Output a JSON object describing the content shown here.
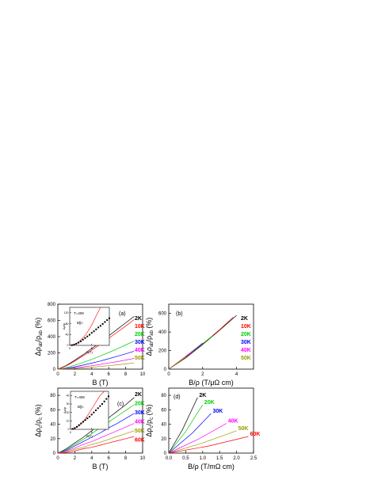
{
  "chart_data": [
    {
      "panel": "a",
      "type": "line",
      "panel_label": "(a)",
      "xlabel": "B (T)",
      "ylabel_parts": [
        "Δρ",
        "ab",
        "/ρ",
        "ab",
        " (%)"
      ],
      "xlim": [
        0,
        10
      ],
      "ylim": [
        0,
        800
      ],
      "xticks": [
        0,
        2,
        4,
        6,
        8,
        10
      ],
      "yticks": [
        0,
        200,
        400,
        600,
        800
      ],
      "x": [
        0,
        1,
        2,
        3,
        4,
        5,
        6,
        7,
        8,
        9
      ],
      "series": [
        {
          "name": "2K",
          "color": "#000000",
          "values": [
            0,
            45,
            110,
            180,
            255,
            330,
            410,
            490,
            570,
            650
          ]
        },
        {
          "name": "10K",
          "color": "#ff0000",
          "values": [
            0,
            40,
            100,
            165,
            235,
            305,
            380,
            455,
            530,
            610
          ]
        },
        {
          "name": "20K",
          "color": "#00cc00",
          "values": [
            0,
            18,
            48,
            82,
            120,
            162,
            205,
            250,
            298,
            345
          ]
        },
        {
          "name": "30K",
          "color": "#0000ff",
          "values": [
            0,
            10,
            28,
            50,
            74,
            100,
            128,
            158,
            188,
            220
          ]
        },
        {
          "name": "40K",
          "color": "#ff00ff",
          "values": [
            0,
            5,
            15,
            28,
            42,
            58,
            75,
            93,
            112,
            132
          ]
        },
        {
          "name": "50K",
          "color": "#999900",
          "values": [
            0,
            3,
            8,
            15,
            23,
            32,
            42,
            53,
            64,
            76
          ]
        }
      ],
      "inset": {
        "annotation": "T=40K",
        "field_label": "B||c",
        "xlabel": "B(T)",
        "ylabel": "Δρ/ρ",
        "xlim": [
          0,
          9
        ],
        "ylim": [
          0,
          140
        ],
        "xticks": [
          0,
          5
        ],
        "yticks": [
          0,
          40,
          80,
          120
        ],
        "points_x": [
          0.5,
          1,
          1.5,
          2,
          2.5,
          3,
          3.5,
          4,
          4.5,
          5,
          5.5,
          6,
          6.5,
          7,
          7.5,
          8,
          8.5,
          9
        ],
        "points_y": [
          1,
          3,
          6,
          10,
          15,
          21,
          27,
          33,
          39,
          46,
          52,
          59,
          66,
          72,
          79,
          86,
          93,
          100
        ],
        "fit_x": [
          0,
          1,
          2,
          3,
          4,
          5,
          6,
          7
        ],
        "fit_y": [
          0,
          3,
          12,
          27,
          48,
          75,
          108,
          140
        ]
      }
    },
    {
      "panel": "b",
      "type": "line",
      "panel_label": "(b)",
      "xlabel": "B/ρ (T/μΩ cm)",
      "ylabel_parts": [
        "Δρ",
        "ab",
        "/ρ",
        "ab",
        " (%)"
      ],
      "xlim": [
        0,
        5
      ],
      "ylim": [
        0,
        700
      ],
      "xticks": [
        0,
        2,
        4
      ],
      "yticks": [
        0,
        200,
        400,
        600
      ],
      "series": [
        {
          "name": "2K",
          "color": "#000000",
          "x": [
            0,
            1,
            2,
            3,
            4
          ],
          "values": [
            0,
            120,
            265,
            420,
            580
          ]
        },
        {
          "name": "10K",
          "color": "#ff0000",
          "x": [
            0,
            1,
            2,
            3,
            3.8
          ],
          "values": [
            0,
            125,
            270,
            425,
            560
          ]
        },
        {
          "name": "20K",
          "color": "#00cc00",
          "x": [
            0,
            1,
            2,
            2.6
          ],
          "values": [
            0,
            130,
            275,
            360
          ]
        },
        {
          "name": "30K",
          "color": "#0000ff",
          "x": [
            0,
            1,
            2
          ],
          "values": [
            0,
            135,
            280
          ]
        },
        {
          "name": "40K",
          "color": "#ff00ff",
          "x": [
            0,
            0.8,
            1.4
          ],
          "values": [
            0,
            110,
            195
          ]
        },
        {
          "name": "50K",
          "color": "#999900",
          "x": [
            0,
            0.6,
            1.0
          ],
          "values": [
            0,
            80,
            135
          ]
        }
      ]
    },
    {
      "panel": "c",
      "type": "line",
      "panel_label": "(c)",
      "xlabel": "B (T)",
      "ylabel_parts": [
        "Δρ",
        "c",
        "/ρ",
        "c",
        " (%)"
      ],
      "xlim": [
        0,
        10
      ],
      "ylim": [
        0,
        90
      ],
      "xticks": [
        0,
        2,
        4,
        6,
        8,
        10
      ],
      "yticks": [
        0,
        20,
        40,
        60,
        80
      ],
      "x": [
        0,
        1,
        2,
        3,
        4,
        5,
        6,
        7,
        8,
        9
      ],
      "series": [
        {
          "name": "2K",
          "color": "#000000",
          "values": [
            0,
            6,
            14,
            22,
            31,
            40,
            49,
            58,
            67,
            77
          ]
        },
        {
          "name": "20K",
          "color": "#00cc00",
          "values": [
            0,
            5,
            12,
            19,
            27,
            35,
            43,
            51,
            59,
            67
          ]
        },
        {
          "name": "30K",
          "color": "#0000ff",
          "values": [
            0,
            4,
            10,
            16,
            22,
            28,
            35,
            41,
            48,
            55
          ]
        },
        {
          "name": "40K",
          "color": "#ff00ff",
          "values": [
            0,
            3,
            7,
            12,
            16,
            21,
            26,
            31,
            36,
            41
          ]
        },
        {
          "name": "50K",
          "color": "#999900",
          "values": [
            0,
            2,
            5,
            8,
            12,
            15,
            19,
            23,
            27,
            31
          ]
        },
        {
          "name": "60K",
          "color": "#ff0000",
          "values": [
            0,
            1,
            3,
            6,
            8,
            11,
            14,
            17,
            20,
            23
          ]
        }
      ],
      "inset": {
        "annotation": "T=40K",
        "field_label": "B||c",
        "xlabel": "B(T)",
        "ylabel": "Δρ/ρ",
        "xlim": [
          0,
          9
        ],
        "ylim": [
          0,
          45
        ],
        "xticks": [
          0,
          5
        ],
        "yticks": [
          0,
          10,
          20,
          30,
          40
        ],
        "points_x": [
          0.5,
          1,
          1.5,
          2,
          2.5,
          3,
          3.5,
          4,
          4.5,
          5,
          5.5,
          6,
          6.5,
          7,
          7.5,
          8,
          8.5,
          9
        ],
        "points_y": [
          0.5,
          1.5,
          3,
          5,
          7,
          9,
          11,
          13,
          15,
          17.5,
          20,
          22.5,
          25,
          27.5,
          30,
          33,
          36,
          39
        ],
        "fit_x": [
          0,
          1,
          2,
          3,
          4,
          5,
          6,
          7,
          8
        ],
        "fit_y": [
          0,
          1,
          4,
          9,
          16,
          24,
          32,
          40,
          45
        ]
      }
    },
    {
      "panel": "d",
      "type": "line",
      "panel_label": "(d)",
      "xlabel": "B/ρ (T/mΩ cm)",
      "ylabel_parts": [
        "Δρ",
        "c",
        "/ρ",
        "c",
        " (%)"
      ],
      "xlim": [
        0,
        2.5
      ],
      "ylim": [
        0,
        90
      ],
      "xticks": [
        0,
        0.5,
        1.0,
        1.5,
        2.0,
        2.5
      ],
      "xtick_labels": [
        "0.0",
        "0.5",
        "1.0",
        "1.5",
        "2.0",
        "2.5"
      ],
      "yticks": [
        0,
        20,
        40,
        60,
        80
      ],
      "series": [
        {
          "name": "2K",
          "color": "#000000",
          "x": [
            0,
            0.4,
            0.85
          ],
          "values": [
            0,
            32,
            77
          ]
        },
        {
          "name": "20K",
          "color": "#00cc00",
          "x": [
            0,
            0.5,
            1.0
          ],
          "values": [
            0,
            30,
            67
          ]
        },
        {
          "name": "30K",
          "color": "#0000ff",
          "x": [
            0,
            0.7,
            1.25
          ],
          "values": [
            0,
            28,
            55
          ]
        },
        {
          "name": "40K",
          "color": "#ff00ff",
          "x": [
            0,
            0.9,
            1.7
          ],
          "values": [
            0,
            20,
            41
          ]
        },
        {
          "name": "50K",
          "color": "#999900",
          "x": [
            0,
            1.0,
            2.0
          ],
          "values": [
            0,
            14,
            31
          ]
        },
        {
          "name": "60K",
          "color": "#ff0000",
          "x": [
            0,
            1.2,
            2.35
          ],
          "values": [
            0,
            10,
            23
          ]
        }
      ]
    }
  ]
}
